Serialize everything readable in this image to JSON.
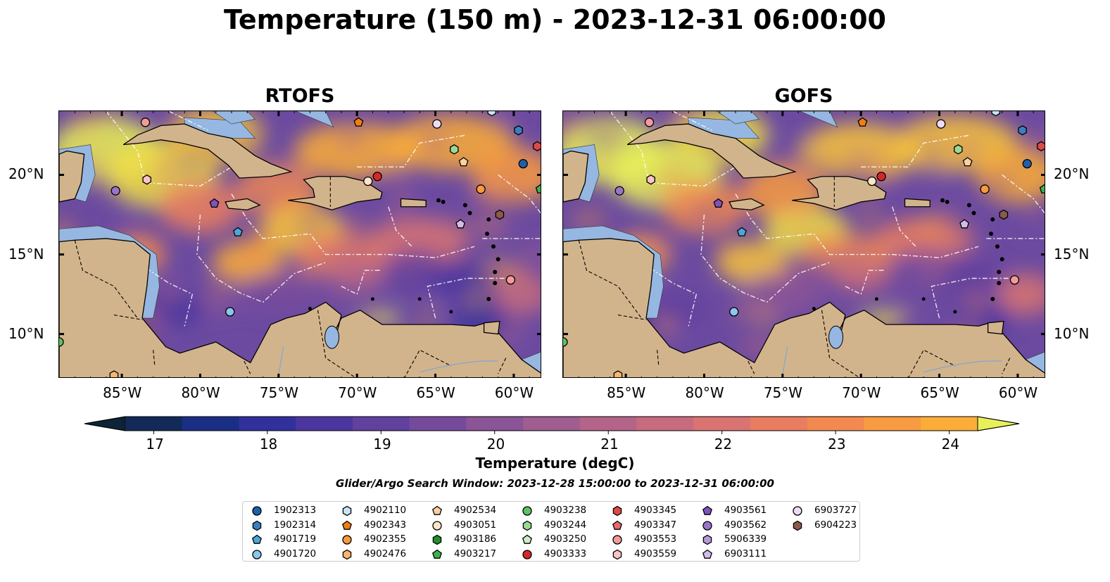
{
  "figure": {
    "title": "Temperature (150 m) - 2023-12-31 06:00:00",
    "window_text": "Glider/Argo Search Window: 2023-12-28 15:00:00 to 2023-12-31 06:00:00"
  },
  "panels": [
    {
      "id": "rtofs",
      "title": "RTOFS"
    },
    {
      "id": "gofs",
      "title": "GOFS"
    }
  ],
  "axes": {
    "lon_ticks": [
      "85°W",
      "80°W",
      "75°W",
      "70°W",
      "65°W",
      "60°W"
    ],
    "lat_ticks": [
      "20°N",
      "15°N",
      "10°N"
    ],
    "lon_range": [
      -89,
      -58.2
    ],
    "lat_range": [
      7.2,
      24
    ]
  },
  "colorbar": {
    "label": "Temperature (degC)",
    "ticks": [
      "17",
      "18",
      "19",
      "20",
      "21",
      "22",
      "23",
      "24"
    ],
    "range": [
      16.75,
      24.5
    ],
    "colors": [
      "#0d2438",
      "#112a57",
      "#1a2e86",
      "#31309c",
      "#4b369f",
      "#61409e",
      "#754a9c",
      "#8a5497",
      "#9f5d90",
      "#b46488",
      "#c76b7e",
      "#d97472",
      "#e87d62",
      "#f28a50",
      "#f99b40",
      "#fbad37",
      "#f8c338",
      "#efdd45",
      "#e7f058"
    ],
    "extend": "both"
  },
  "colors": {
    "land": "#d2b48c",
    "shallow": "#95b7e1",
    "deep_pacific": "#05202e"
  },
  "legend": {
    "items": [
      {
        "id": "1902313",
        "marker": "circle",
        "color": "#1f5fa8"
      },
      {
        "id": "1902314",
        "marker": "hexagon",
        "color": "#3a7fc0"
      },
      {
        "id": "4901719",
        "marker": "pentagon",
        "color": "#4da6d8"
      },
      {
        "id": "4901720",
        "marker": "circle",
        "color": "#8cc5ee"
      },
      {
        "id": "4902110",
        "marker": "hexagon",
        "color": "#c6e6f7"
      },
      {
        "id": "4902343",
        "marker": "pentagon",
        "color": "#f07d12"
      },
      {
        "id": "4902355",
        "marker": "circle",
        "color": "#f79a3e"
      },
      {
        "id": "4902476",
        "marker": "hexagon",
        "color": "#fbb56f"
      },
      {
        "id": "4902534",
        "marker": "pentagon",
        "color": "#fdd09f"
      },
      {
        "id": "4903051",
        "marker": "circle",
        "color": "#fde4c8"
      },
      {
        "id": "4903186",
        "marker": "hexagon",
        "color": "#1e8f2a"
      },
      {
        "id": "4903217",
        "marker": "pentagon",
        "color": "#3cb34a"
      },
      {
        "id": "4903238",
        "marker": "circle",
        "color": "#62c163"
      },
      {
        "id": "4903244",
        "marker": "hexagon",
        "color": "#9ad992"
      },
      {
        "id": "4903250",
        "marker": "pentagon",
        "color": "#cdeec6"
      },
      {
        "id": "4903333",
        "marker": "circle",
        "color": "#d62728"
      },
      {
        "id": "4903345",
        "marker": "hexagon",
        "color": "#e04848"
      },
      {
        "id": "4903347",
        "marker": "pentagon",
        "color": "#ea6a6a"
      },
      {
        "id": "4903553",
        "marker": "circle",
        "color": "#f39a9a"
      },
      {
        "id": "4903559",
        "marker": "hexagon",
        "color": "#f8c4c4"
      },
      {
        "id": "4903561",
        "marker": "pentagon",
        "color": "#8053b8"
      },
      {
        "id": "4903562",
        "marker": "circle",
        "color": "#9a74c8"
      },
      {
        "id": "5906339",
        "marker": "hexagon",
        "color": "#b59ad8"
      },
      {
        "id": "6903111",
        "marker": "pentagon",
        "color": "#d2bce8"
      },
      {
        "id": "6903727",
        "marker": "circle",
        "color": "#ecdcf6"
      },
      {
        "id": "6904223",
        "marker": "hexagon",
        "color": "#8c5a4a"
      }
    ]
  },
  "floats": [
    {
      "id": "4903727-a",
      "marker": "circle",
      "color": "#f39a9a",
      "lon": -83.5,
      "lat": 23.3
    },
    {
      "id": "4902343-a",
      "marker": "pentagon",
      "color": "#f07d12",
      "lon": -69.9,
      "lat": 23.3
    },
    {
      "id": "6903727-a",
      "marker": "circle",
      "color": "#ecdcf6",
      "lon": -64.9,
      "lat": 23.2
    },
    {
      "id": "4902110-a",
      "marker": "hexagon",
      "color": "#c6e6f7",
      "lon": -61.4,
      "lat": 24.0
    },
    {
      "id": "1902314-a",
      "marker": "hexagon",
      "color": "#3a7fc0",
      "lon": -59.7,
      "lat": 22.8
    },
    {
      "id": "4903345-a",
      "marker": "hexagon",
      "color": "#e04848",
      "lon": -58.5,
      "lat": 21.8
    },
    {
      "id": "4903244-a",
      "marker": "hexagon",
      "color": "#9ad992",
      "lon": -63.8,
      "lat": 21.6
    },
    {
      "id": "4902534-a",
      "marker": "pentagon",
      "color": "#fdd09f",
      "lon": -63.2,
      "lat": 20.8
    },
    {
      "id": "1902313-a",
      "marker": "circle",
      "color": "#1f5fa8",
      "lon": -59.4,
      "lat": 20.7
    },
    {
      "id": "4903559-a",
      "marker": "hexagon",
      "color": "#f8c4c4",
      "lon": -83.4,
      "lat": 19.7
    },
    {
      "id": "5906339-a",
      "marker": "circle",
      "color": "#9a74c8",
      "lon": -85.4,
      "lat": 19.0
    },
    {
      "id": "4903051-a",
      "marker": "circle",
      "color": "#fde4c8",
      "lon": -69.3,
      "lat": 19.6
    },
    {
      "id": "4903333-a",
      "marker": "circle",
      "color": "#d62728",
      "lon": -68.7,
      "lat": 19.9
    },
    {
      "id": "4902355-a",
      "marker": "circle",
      "color": "#f79a3e",
      "lon": -62.1,
      "lat": 19.1
    },
    {
      "id": "4903217-a",
      "marker": "pentagon",
      "color": "#3cb34a",
      "lon": -58.3,
      "lat": 19.1
    },
    {
      "id": "4903561-a",
      "marker": "pentagon",
      "color": "#8053b8",
      "lon": -79.1,
      "lat": 18.2
    },
    {
      "id": "6904223-a",
      "marker": "hexagon",
      "color": "#8c5a4a",
      "lon": -60.9,
      "lat": 17.5
    },
    {
      "id": "6903111-a",
      "marker": "pentagon",
      "color": "#d2bce8",
      "lon": -63.4,
      "lat": 16.9
    },
    {
      "id": "4901719-a",
      "marker": "pentagon",
      "color": "#4da6d8",
      "lon": -77.6,
      "lat": 16.4
    },
    {
      "id": "4903553-a",
      "marker": "circle",
      "color": "#f39a9a",
      "lon": -60.2,
      "lat": 13.4
    },
    {
      "id": "4901720-a",
      "marker": "circle",
      "color": "#8cc5ee",
      "lon": -78.1,
      "lat": 11.4
    },
    {
      "id": "4903238-a",
      "marker": "circle",
      "color": "#62c163",
      "lon": -89.0,
      "lat": 9.5
    },
    {
      "id": "4902476-a",
      "marker": "hexagon",
      "color": "#fbb56f",
      "lon": -85.5,
      "lat": 7.4
    }
  ]
}
